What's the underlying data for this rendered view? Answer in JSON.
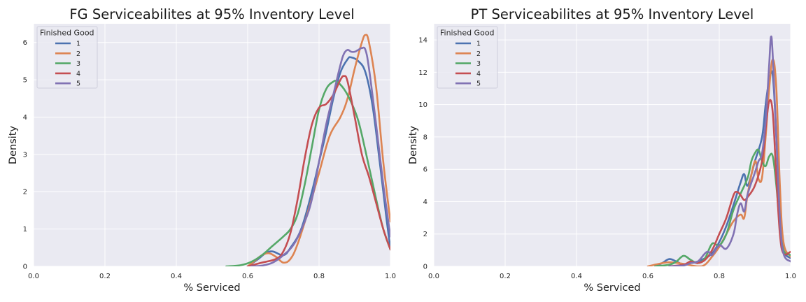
{
  "chart_data": [
    {
      "type": "line",
      "title": "FG Serviceabilites at 95% Inventory Level",
      "xlabel": "% Serviced",
      "ylabel": "Density",
      "xlim": [
        0.0,
        1.0
      ],
      "ylim": [
        0,
        6.5
      ],
      "xticks": [
        "0.0",
        "0.2",
        "0.4",
        "0.6",
        "0.8",
        "1.0"
      ],
      "yticks": [
        "0",
        "1",
        "2",
        "3",
        "4",
        "5",
        "6"
      ],
      "grid": true,
      "legend": {
        "title": "Finished Good",
        "placement": "top-left"
      },
      "series": [
        {
          "name": "1",
          "color": "#4c72b0",
          "x": [
            0.6,
            0.63,
            0.65,
            0.67,
            0.7,
            0.72,
            0.75,
            0.78,
            0.8,
            0.82,
            0.84,
            0.86,
            0.88,
            0.89,
            0.91,
            0.93,
            0.95,
            0.97,
            0.99,
            1.0
          ],
          "y": [
            0.0,
            0.2,
            0.35,
            0.4,
            0.3,
            0.5,
            1.0,
            2.0,
            2.8,
            3.6,
            4.5,
            5.2,
            5.55,
            5.6,
            5.5,
            5.2,
            4.3,
            2.8,
            1.2,
            0.5
          ]
        },
        {
          "name": "2",
          "color": "#dd8452",
          "x": [
            0.6,
            0.62,
            0.64,
            0.66,
            0.68,
            0.7,
            0.72,
            0.74,
            0.77,
            0.8,
            0.83,
            0.86,
            0.88,
            0.9,
            0.92,
            0.93,
            0.94,
            0.96,
            0.98,
            1.0
          ],
          "y": [
            0.0,
            0.15,
            0.3,
            0.35,
            0.25,
            0.1,
            0.2,
            0.6,
            1.5,
            2.5,
            3.5,
            4.0,
            4.5,
            5.3,
            6.0,
            6.2,
            6.0,
            4.8,
            2.8,
            1.2
          ]
        },
        {
          "name": "3",
          "color": "#55a868",
          "x": [
            0.54,
            0.58,
            0.61,
            0.64,
            0.67,
            0.7,
            0.72,
            0.74,
            0.76,
            0.78,
            0.8,
            0.82,
            0.84,
            0.85,
            0.87,
            0.89,
            0.91,
            0.93,
            0.96,
            0.98,
            1.0
          ],
          "y": [
            0.0,
            0.03,
            0.12,
            0.3,
            0.55,
            0.8,
            1.0,
            1.4,
            2.2,
            3.2,
            4.2,
            4.75,
            4.95,
            4.95,
            4.75,
            4.4,
            3.9,
            3.1,
            1.8,
            1.0,
            0.45
          ]
        },
        {
          "name": "4",
          "color": "#c44e52",
          "x": [
            0.6,
            0.64,
            0.68,
            0.7,
            0.72,
            0.74,
            0.76,
            0.78,
            0.8,
            0.82,
            0.84,
            0.86,
            0.87,
            0.88,
            0.9,
            0.92,
            0.94,
            0.96,
            0.98,
            1.0
          ],
          "y": [
            0.0,
            0.1,
            0.2,
            0.4,
            0.9,
            1.8,
            2.9,
            3.8,
            4.25,
            4.35,
            4.6,
            5.0,
            5.1,
            4.95,
            4.0,
            3.0,
            2.4,
            1.7,
            1.0,
            0.45
          ]
        },
        {
          "name": "5",
          "color": "#8172b3",
          "x": [
            0.61,
            0.64,
            0.67,
            0.7,
            0.73,
            0.76,
            0.78,
            0.8,
            0.82,
            0.84,
            0.86,
            0.87,
            0.88,
            0.89,
            0.9,
            0.91,
            0.92,
            0.93,
            0.94,
            0.96,
            0.98,
            1.0
          ],
          "y": [
            0.0,
            0.02,
            0.1,
            0.3,
            0.6,
            1.2,
            1.8,
            2.8,
            3.8,
            4.6,
            5.4,
            5.7,
            5.8,
            5.75,
            5.75,
            5.8,
            5.85,
            5.8,
            5.3,
            3.8,
            2.2,
            0.8
          ]
        }
      ]
    },
    {
      "type": "line",
      "title": "PT Serviceabilites at 95% Inventory Level",
      "xlabel": "% Serviced",
      "ylabel": "Density",
      "xlim": [
        0.0,
        1.0
      ],
      "ylim": [
        0,
        15
      ],
      "xticks": [
        "0.0",
        "0.2",
        "0.4",
        "0.6",
        "0.8",
        "1.0"
      ],
      "yticks": [
        "0",
        "2",
        "4",
        "6",
        "8",
        "10",
        "12",
        "14"
      ],
      "grid": true,
      "legend": {
        "title": "Finished Good",
        "placement": "top-left"
      },
      "series": [
        {
          "name": "1",
          "color": "#4c72b0",
          "x": [
            0.62,
            0.64,
            0.66,
            0.68,
            0.7,
            0.72,
            0.74,
            0.76,
            0.78,
            0.8,
            0.82,
            0.84,
            0.86,
            0.87,
            0.88,
            0.9,
            0.92,
            0.93,
            0.94,
            0.95,
            0.96,
            0.97,
            0.98,
            1.0
          ],
          "y": [
            0.0,
            0.2,
            0.45,
            0.3,
            0.1,
            0.2,
            0.3,
            0.5,
            0.8,
            1.5,
            2.5,
            3.8,
            5.2,
            5.7,
            5.0,
            6.5,
            8.0,
            10.0,
            11.5,
            11.8,
            8.0,
            3.0,
            1.0,
            0.5
          ]
        },
        {
          "name": "2",
          "color": "#dd8452",
          "x": [
            0.6,
            0.63,
            0.66,
            0.7,
            0.74,
            0.76,
            0.78,
            0.8,
            0.82,
            0.84,
            0.86,
            0.87,
            0.88,
            0.9,
            0.91,
            0.92,
            0.93,
            0.94,
            0.95,
            0.96,
            0.97,
            0.98,
            1.0
          ],
          "y": [
            0.0,
            0.15,
            0.25,
            0.15,
            0.0,
            0.1,
            0.6,
            1.2,
            2.0,
            2.8,
            3.2,
            3.0,
            4.5,
            6.5,
            5.4,
            5.5,
            8.0,
            11.0,
            12.8,
            11.0,
            5.0,
            1.5,
            0.6
          ]
        },
        {
          "name": "3",
          "color": "#55a868",
          "x": [
            0.62,
            0.66,
            0.68,
            0.7,
            0.72,
            0.74,
            0.76,
            0.78,
            0.8,
            0.82,
            0.84,
            0.86,
            0.88,
            0.89,
            0.9,
            0.91,
            0.92,
            0.93,
            0.94,
            0.95,
            0.96,
            0.97,
            0.98,
            1.0
          ],
          "y": [
            0.0,
            0.1,
            0.3,
            0.65,
            0.4,
            0.2,
            0.5,
            1.4,
            1.3,
            2.0,
            3.5,
            4.5,
            5.5,
            6.5,
            7.0,
            7.2,
            6.5,
            6.2,
            6.8,
            6.8,
            5.0,
            2.5,
            1.0,
            0.7
          ]
        },
        {
          "name": "4",
          "color": "#c44e52",
          "x": [
            0.66,
            0.7,
            0.72,
            0.74,
            0.76,
            0.78,
            0.8,
            0.82,
            0.84,
            0.85,
            0.86,
            0.87,
            0.88,
            0.9,
            0.92,
            0.93,
            0.94,
            0.95,
            0.96,
            0.97,
            0.98,
            1.0
          ],
          "y": [
            0.0,
            0.1,
            0.3,
            0.2,
            0.4,
            1.0,
            2.0,
            3.0,
            4.4,
            4.6,
            4.4,
            4.1,
            4.3,
            5.0,
            6.5,
            8.5,
            10.2,
            9.5,
            5.5,
            2.0,
            0.8,
            0.9
          ]
        },
        {
          "name": "5",
          "color": "#8172b3",
          "x": [
            0.66,
            0.7,
            0.72,
            0.74,
            0.76,
            0.77,
            0.78,
            0.8,
            0.82,
            0.84,
            0.85,
            0.86,
            0.87,
            0.88,
            0.9,
            0.91,
            0.92,
            0.93,
            0.94,
            0.945,
            0.95,
            0.96,
            0.97,
            0.98,
            1.0
          ],
          "y": [
            0.0,
            0.05,
            0.2,
            0.3,
            0.8,
            0.9,
            0.7,
            1.3,
            1.1,
            2.0,
            3.2,
            3.9,
            3.4,
            4.5,
            5.8,
            6.5,
            7.0,
            9.0,
            12.5,
            14.2,
            13.0,
            8.0,
            3.0,
            0.8,
            0.3
          ]
        }
      ]
    }
  ]
}
